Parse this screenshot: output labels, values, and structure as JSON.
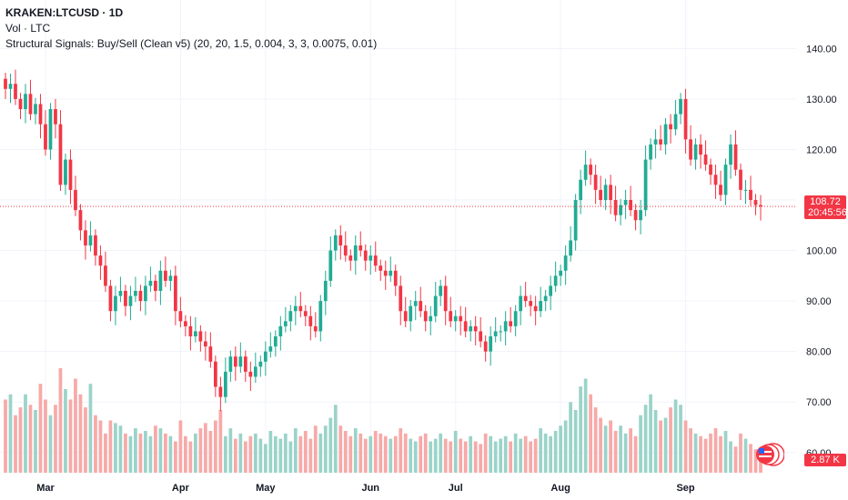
{
  "legend": {
    "symbol": "KRAKEN:LTCUSD · 1D",
    "volume": "Vol · LTC",
    "indicator": "Structural Signals: Buy/Sell (Clean v5) (20, 20, 1.5, 0.004, 3, 3, 0.0075, 0.01)"
  },
  "price_tag": {
    "value": "108.72",
    "countdown": "20:45:56"
  },
  "volume_tag": {
    "value": "2.87 K"
  },
  "colors": {
    "up": "#22ab94",
    "down": "#f23645",
    "vol_up": "#9bd3c9",
    "vol_down": "#f7a9a8",
    "grid": "#f0f3fa"
  },
  "logo_icon": "tradingview-flag-icon",
  "chart_data": {
    "type": "candlestick",
    "y_ticks": [
      "140.00",
      "130.00",
      "120.00",
      "110.00",
      "100.00",
      "90.00",
      "80.00",
      "70.00",
      "60.00"
    ],
    "ylim": [
      56,
      146
    ],
    "x_ticks": [
      "Mar",
      "Apr",
      "May",
      "Jun",
      "Jul",
      "Aug",
      "Sep"
    ],
    "last_price": 108.72,
    "close": [
      132,
      133,
      130,
      128,
      131,
      127,
      129,
      125,
      120,
      128,
      125,
      113,
      118,
      112,
      108,
      104,
      101,
      103,
      99,
      97,
      93,
      88,
      91,
      92,
      89,
      91,
      92,
      90,
      93,
      94,
      92,
      96,
      94,
      95,
      88,
      86,
      85,
      83,
      84,
      82,
      81,
      78,
      73,
      71,
      76,
      79,
      77,
      79,
      76,
      75,
      77,
      78,
      80,
      81,
      83,
      85,
      86,
      88,
      89,
      88,
      87,
      85,
      84,
      90,
      94,
      100,
      103,
      101,
      99,
      98,
      101,
      100,
      98,
      99,
      97,
      96,
      95,
      96,
      93,
      88,
      86,
      89,
      90,
      88,
      86,
      87,
      91,
      93,
      88,
      86,
      87,
      86,
      84,
      85,
      84,
      82,
      80,
      83,
      84,
      84,
      86,
      85,
      88,
      91,
      90,
      89,
      88,
      90,
      91,
      93,
      95,
      96,
      99,
      102,
      110,
      114,
      117,
      115,
      112,
      110,
      113,
      110,
      107,
      109,
      110,
      108,
      106,
      108,
      118,
      121,
      122,
      121,
      125,
      124,
      127,
      130,
      122,
      118,
      121,
      119,
      117,
      115,
      113,
      111,
      117,
      121,
      116,
      112,
      112,
      110,
      109,
      108.72
    ],
    "volume": [
      28,
      30,
      22,
      25,
      30,
      26,
      24,
      34,
      28,
      22,
      26,
      40,
      32,
      28,
      36,
      30,
      25,
      34,
      22,
      20,
      15,
      20,
      19,
      18,
      15,
      14,
      17,
      15,
      16,
      14,
      18,
      17,
      15,
      14,
      12,
      20,
      14,
      12,
      15,
      17,
      19,
      16,
      20,
      24,
      14,
      17,
      13,
      15,
      12,
      14,
      15,
      13,
      11,
      16,
      14,
      13,
      15,
      12,
      17,
      14,
      16,
      13,
      18,
      15,
      18,
      21,
      26,
      18,
      16,
      14,
      17,
      15,
      13,
      14,
      16,
      15,
      14,
      13,
      14,
      17,
      15,
      13,
      12,
      14,
      15,
      12,
      13,
      15,
      13,
      12,
      16,
      13,
      12,
      14,
      12,
      11,
      15,
      14,
      12,
      13,
      14,
      12,
      15,
      13,
      14,
      12,
      13,
      17,
      15,
      14,
      16,
      18,
      20,
      27,
      24,
      33,
      36,
      30,
      25,
      21,
      18,
      20,
      16,
      18,
      15,
      17,
      14,
      22,
      26,
      30,
      24,
      20,
      21,
      25,
      28,
      26,
      20,
      17,
      15,
      14,
      13,
      15,
      17,
      14,
      16,
      12,
      10,
      15,
      13,
      11,
      9,
      8
    ]
  }
}
